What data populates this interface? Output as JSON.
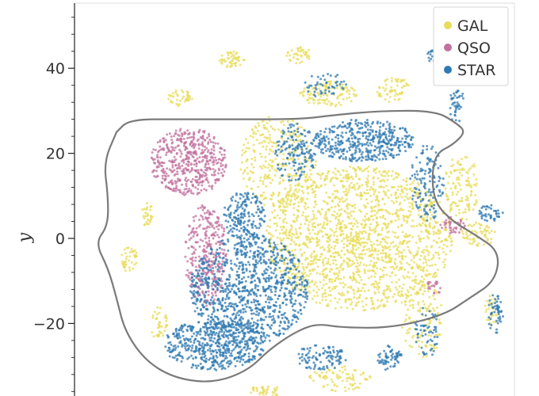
{
  "chart_data": {
    "type": "scatter",
    "title": "",
    "xlabel": "",
    "ylabel": "y",
    "ylim": [
      -37,
      55
    ],
    "xlim": [
      -58,
      63
    ],
    "yticks": [
      40,
      20,
      0,
      -20
    ],
    "ytick_labels": [
      "40",
      "20",
      "0",
      "−20"
    ],
    "grid": false,
    "legend_position": "top-right",
    "series": [
      {
        "name": "GAL",
        "color": "#e8dc5a",
        "regions": [
          {
            "cx": 22,
            "cy": 0,
            "rx": 22,
            "ry": 17,
            "n": 1700
          },
          {
            "cx": 3,
            "cy": 18,
            "rx": 9,
            "ry": 11,
            "n": 300
          },
          {
            "cx": 46,
            "cy": 12,
            "rx": 4,
            "ry": 8,
            "n": 120
          },
          {
            "cx": 37,
            "cy": -19,
            "rx": 5,
            "ry": 9,
            "n": 120
          },
          {
            "cx": 15,
            "cy": 34,
            "rx": 7,
            "ry": 3,
            "n": 110
          },
          {
            "cx": 30,
            "cy": 35,
            "rx": 4,
            "ry": 3,
            "n": 60
          },
          {
            "cx": -8,
            "cy": 42,
            "rx": 3,
            "ry": 2,
            "n": 50
          },
          {
            "cx": 8,
            "cy": 43,
            "rx": 3,
            "ry": 2,
            "n": 40
          },
          {
            "cx": -20,
            "cy": 33,
            "rx": 3,
            "ry": 2,
            "n": 40
          },
          {
            "cx": 50,
            "cy": 1,
            "rx": 4,
            "ry": 3,
            "n": 60
          },
          {
            "cx": -32,
            "cy": -5,
            "rx": 2,
            "ry": 3,
            "n": 40
          },
          {
            "cx": -25,
            "cy": -20,
            "rx": 2,
            "ry": 4,
            "n": 40
          },
          {
            "cx": 17,
            "cy": -33,
            "rx": 8,
            "ry": 3,
            "n": 80
          },
          {
            "cx": 0,
            "cy": -36,
            "rx": 4,
            "ry": 1.5,
            "n": 40
          },
          {
            "cx": -28,
            "cy": 6,
            "rx": 1.5,
            "ry": 3,
            "n": 30
          },
          {
            "cx": 53,
            "cy": -17,
            "rx": 1.5,
            "ry": 4,
            "n": 30
          }
        ]
      },
      {
        "name": "QSO",
        "color": "#c2729e",
        "regions": [
          {
            "cx": -18,
            "cy": 18,
            "rx": 9,
            "ry": 8,
            "n": 500
          },
          {
            "cx": -14,
            "cy": -4,
            "rx": 5,
            "ry": 12,
            "n": 320
          },
          {
            "cx": 44,
            "cy": 3,
            "rx": 3,
            "ry": 2,
            "n": 40
          },
          {
            "cx": 40,
            "cy": -11,
            "rx": 2,
            "ry": 2,
            "n": 20
          }
        ]
      },
      {
        "name": "STAR",
        "color": "#2f7ab0",
        "regions": [
          {
            "cx": -4,
            "cy": -12,
            "rx": 14,
            "ry": 13,
            "n": 1000
          },
          {
            "cx": -12,
            "cy": -25,
            "rx": 12,
            "ry": 6,
            "n": 500
          },
          {
            "cx": 23,
            "cy": 23,
            "rx": 12,
            "ry": 5,
            "n": 420
          },
          {
            "cx": 7,
            "cy": 20,
            "rx": 5,
            "ry": 7,
            "n": 150
          },
          {
            "cx": -5,
            "cy": 5,
            "rx": 5,
            "ry": 6,
            "n": 180
          },
          {
            "cx": 13,
            "cy": -28,
            "rx": 6,
            "ry": 3,
            "n": 100
          },
          {
            "cx": 38,
            "cy": 13,
            "rx": 4,
            "ry": 9,
            "n": 130
          },
          {
            "cx": 38,
            "cy": -22,
            "rx": 3,
            "ry": 6,
            "n": 60
          },
          {
            "cx": 54,
            "cy": -18,
            "rx": 2,
            "ry": 5,
            "n": 50
          },
          {
            "cx": 53,
            "cy": 6,
            "rx": 3,
            "ry": 2,
            "n": 40
          },
          {
            "cx": 45,
            "cy": 31,
            "rx": 2,
            "ry": 4,
            "n": 40
          },
          {
            "cx": 29,
            "cy": -28,
            "rx": 3,
            "ry": 3,
            "n": 60
          },
          {
            "cx": 14,
            "cy": 36,
            "rx": 5,
            "ry": 3,
            "n": 50
          },
          {
            "cx": 40,
            "cy": 43,
            "rx": 2,
            "ry": 2,
            "n": 30
          }
        ]
      }
    ],
    "density_contour": [
      [
        -35,
        25
      ],
      [
        -32,
        28
      ],
      [
        -20,
        28
      ],
      [
        -6,
        28
      ],
      [
        8,
        28
      ],
      [
        16,
        29
      ],
      [
        27,
        30
      ],
      [
        40,
        30
      ],
      [
        45,
        27
      ],
      [
        47,
        25
      ],
      [
        44,
        22
      ],
      [
        40,
        20
      ],
      [
        39,
        14
      ],
      [
        40,
        8
      ],
      [
        44,
        4
      ],
      [
        49,
        1
      ],
      [
        55,
        -3
      ],
      [
        54,
        -10
      ],
      [
        48,
        -14
      ],
      [
        42,
        -18
      ],
      [
        30,
        -21
      ],
      [
        18,
        -21
      ],
      [
        12,
        -20
      ],
      [
        7,
        -22
      ],
      [
        1,
        -26
      ],
      [
        -4,
        -31
      ],
      [
        -12,
        -34
      ],
      [
        -21,
        -33
      ],
      [
        -28,
        -29
      ],
      [
        -33,
        -22
      ],
      [
        -35,
        -14
      ],
      [
        -37,
        -7
      ],
      [
        -40,
        -1
      ],
      [
        -37,
        3
      ],
      [
        -37,
        10
      ],
      [
        -38,
        18
      ],
      [
        -35,
        25
      ]
    ]
  }
}
